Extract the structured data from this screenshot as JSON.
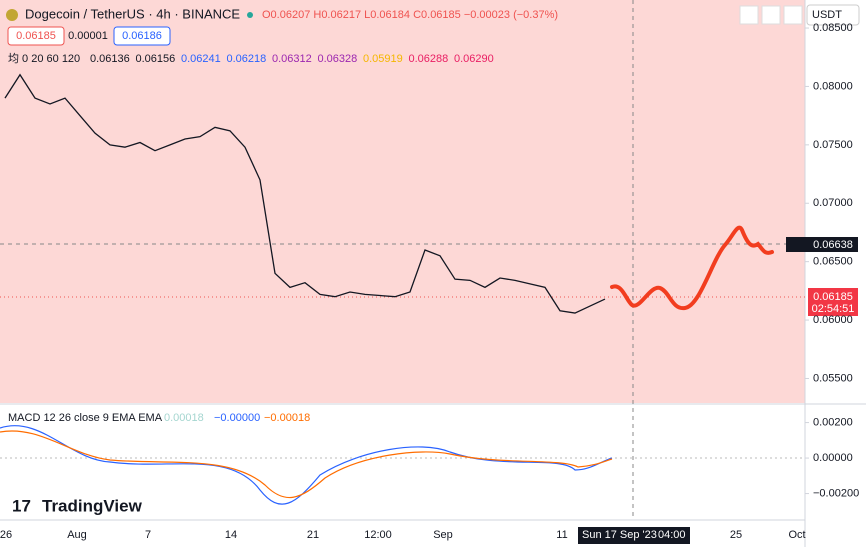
{
  "header": {
    "symbol": "Dogecoin / TetherUS · 4h · BINANCE",
    "ohlc": "O0.06207 H0.06217 L0.06184 C0.06185 −0.00023 (−0.37%)",
    "bid": "0.06185",
    "spread": "0.00001",
    "ask": "0.06186",
    "currency": "USDT"
  },
  "ma_legend": {
    "label": "均 0 20 60 120",
    "values": [
      "0.06136",
      "0.06156",
      "0.06241",
      "0.06218",
      "0.06312",
      "0.06328",
      "0.05919",
      "0.06288",
      "0.06290"
    ]
  },
  "macd_legend": {
    "label": "MACD 12 26 close 9 EMA EMA",
    "values": [
      "0.00018",
      "−0.00000",
      "−0.00018"
    ]
  },
  "price_labels": {
    "last": "0.06185",
    "countdown": "02:54:51",
    "crosshair": "0.06638"
  },
  "time_axis": [
    "26",
    "Aug",
    "7",
    "14",
    "21",
    "12:00",
    "Sep",
    "11",
    "25",
    "Oct"
  ],
  "crosshair_time": {
    "date": "Sun 17 Sep '23",
    "hour": "04:00"
  },
  "brand": "TradingView",
  "chart_data": [
    {
      "type": "line",
      "color": "#131722",
      "values": [
        0.079,
        0.081,
        0.079,
        0.0785,
        0.079,
        0.0775,
        0.076,
        0.075,
        0.0748,
        0.0752,
        0.0745,
        0.075,
        0.0755,
        0.0757,
        0.0765,
        0.0762,
        0.0748,
        0.072,
        0.064,
        0.0628,
        0.0632,
        0.0622,
        0.062,
        0.0624,
        0.0622,
        0.0621,
        0.062,
        0.0624,
        0.066,
        0.0655,
        0.0635,
        0.0634,
        0.0628,
        0.0636,
        0.0634,
        0.0631,
        0.0628,
        0.0608,
        0.0606,
        0.0612,
        0.0618
      ],
      "ylim": [
        0.0529,
        0.0874
      ],
      "yticks": [
        {
          "value": 0.085,
          "label": "0.08500"
        },
        {
          "value": 0.08,
          "label": "0.08000"
        },
        {
          "value": 0.075,
          "label": "0.07500"
        },
        {
          "value": 0.07,
          "label": "0.07000"
        },
        {
          "value": 0.065,
          "label": "0.06500"
        },
        {
          "value": 0.06,
          "label": "0.06000"
        },
        {
          "value": 0.055,
          "label": "0.05500"
        }
      ]
    },
    {
      "type": "macd",
      "ylim": [
        -0.00349,
        0.00299
      ],
      "yticks": [
        {
          "value": 0.002,
          "label": "0.00200"
        },
        {
          "value": 0,
          "label": "0.00000"
        },
        {
          "value": -0.002,
          "label": "−0.00200"
        }
      ]
    }
  ]
}
